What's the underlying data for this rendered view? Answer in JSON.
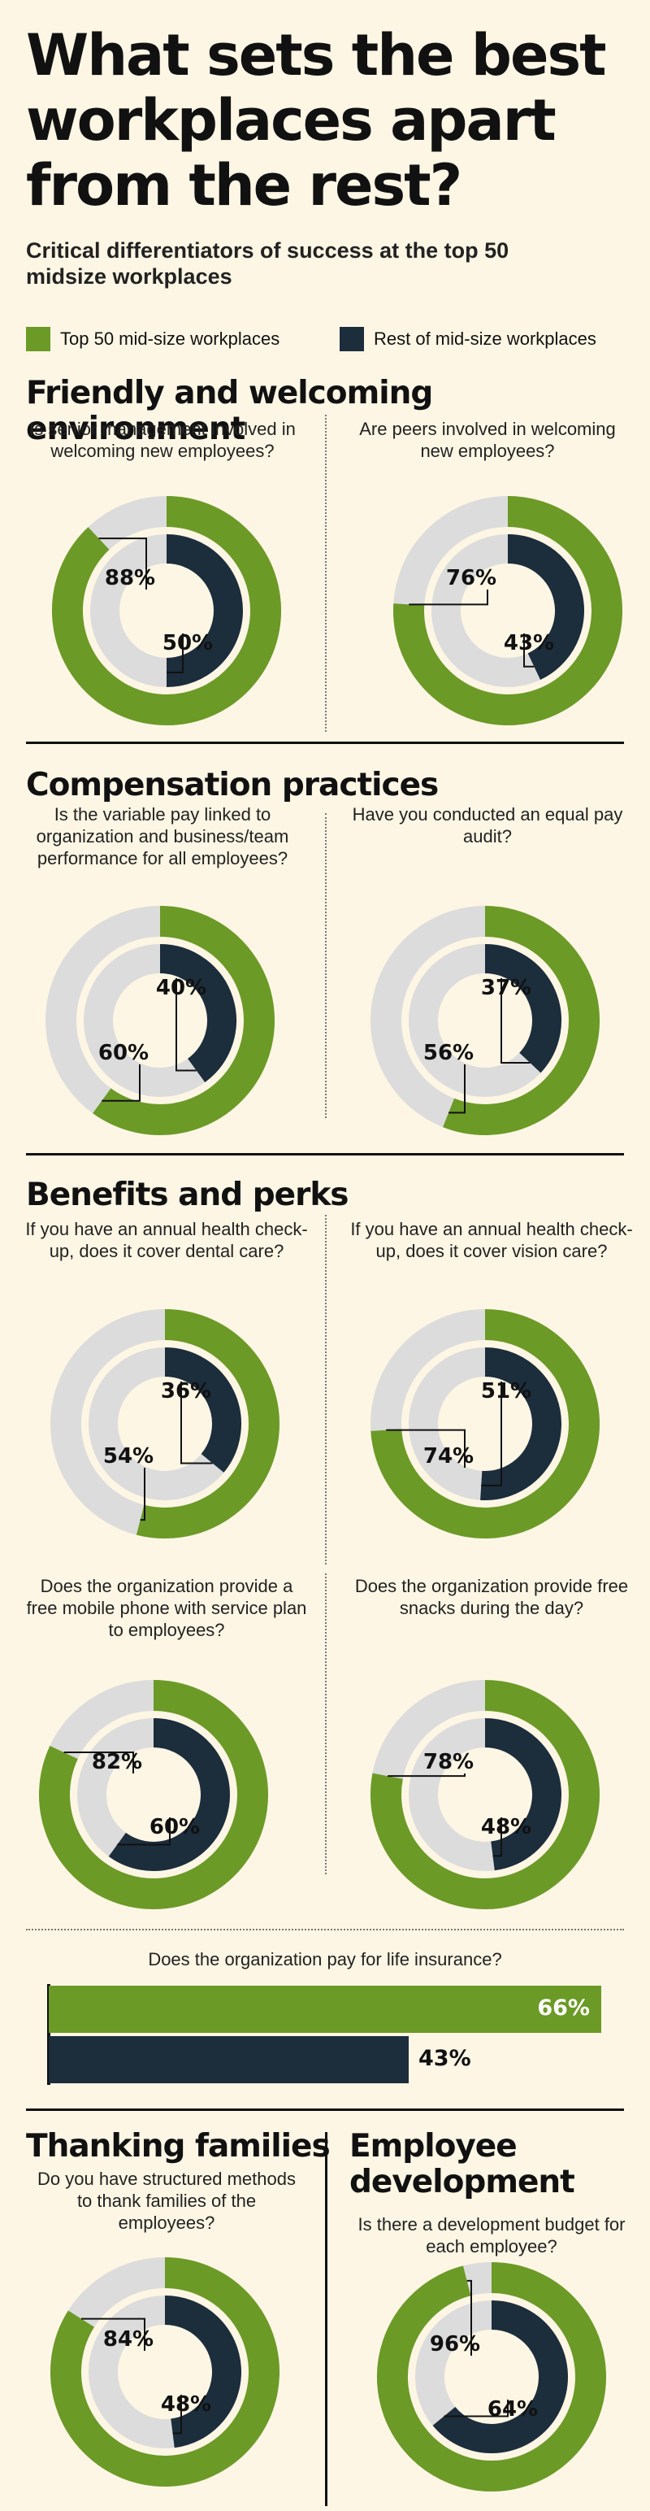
{
  "header": {
    "title": "What sets the best workplaces apart from the rest?",
    "subtitle": "Critical differentiators of success at the top 50 midsize workplaces"
  },
  "legend": {
    "top50": "Top 50 mid-size workplaces",
    "rest": "Rest of mid-size workplaces"
  },
  "colors": {
    "top50": "#6b9a26",
    "rest": "#1c2d3c",
    "track": "#dcdcdc",
    "background": "#fdf6e4"
  },
  "sections": {
    "friendly": "Friendly and welcoming environment",
    "compensation": "Compensation practices",
    "benefits": "Benefits and perks",
    "thanking": "Thanking families",
    "development": "Employee development"
  },
  "chart_data": [
    {
      "type": "donut",
      "id": "senior",
      "question": "Is senior management involved in welcoming new employees?",
      "series": [
        {
          "name": "Top 50 mid-size workplaces",
          "value": 88
        },
        {
          "name": "Rest of mid-size workplaces",
          "value": 50
        }
      ],
      "labels": [
        "88%",
        "50%"
      ]
    },
    {
      "type": "donut",
      "id": "peers",
      "question": "Are peers involved in welcoming new employees?",
      "series": [
        {
          "name": "Top 50 mid-size workplaces",
          "value": 76
        },
        {
          "name": "Rest of mid-size workplaces",
          "value": 43
        }
      ],
      "labels": [
        "76%",
        "43%"
      ]
    },
    {
      "type": "donut",
      "id": "variable",
      "question": "Is the variable pay linked to organization and business/team performance for all employees?",
      "series": [
        {
          "name": "Top 50 mid-size workplaces",
          "value": 60
        },
        {
          "name": "Rest of mid-size workplaces",
          "value": 40
        }
      ],
      "labels": [
        "60%",
        "40%"
      ]
    },
    {
      "type": "donut",
      "id": "equalpay",
      "question": "Have you conducted an equal pay audit?",
      "series": [
        {
          "name": "Top 50 mid-size workplaces",
          "value": 56
        },
        {
          "name": "Rest of mid-size workplaces",
          "value": 37
        }
      ],
      "labels": [
        "56%",
        "37%"
      ]
    },
    {
      "type": "donut",
      "id": "dental",
      "question": "If you have an annual health check-up, does it cover dental care?",
      "series": [
        {
          "name": "Top 50 mid-size workplaces",
          "value": 54
        },
        {
          "name": "Rest of mid-size workplaces",
          "value": 36
        }
      ],
      "labels": [
        "54%",
        "36%"
      ]
    },
    {
      "type": "donut",
      "id": "vision",
      "question": "If you have an annual health check-up, does it cover vision care?",
      "series": [
        {
          "name": "Top 50 mid-size workplaces",
          "value": 74
        },
        {
          "name": "Rest of mid-size workplaces",
          "value": 51
        }
      ],
      "labels": [
        "74%",
        "51%"
      ]
    },
    {
      "type": "donut",
      "id": "mobile",
      "question": "Does the organization provide a free mobile phone with service plan to employees?",
      "series": [
        {
          "name": "Top 50 mid-size workplaces",
          "value": 82
        },
        {
          "name": "Rest of mid-size workplaces",
          "value": 60
        }
      ],
      "labels": [
        "82%",
        "60%"
      ]
    },
    {
      "type": "donut",
      "id": "snacks",
      "question": "Does the organization provide free snacks during the day?",
      "series": [
        {
          "name": "Top 50 mid-size workplaces",
          "value": 78
        },
        {
          "name": "Rest of mid-size workplaces",
          "value": 48
        }
      ],
      "labels": [
        "78%",
        "48%"
      ]
    },
    {
      "type": "bar",
      "id": "life",
      "question": "Does the organization pay for life insurance?",
      "series": [
        {
          "name": "Top 50 mid-size workplaces",
          "value": 66
        },
        {
          "name": "Rest of mid-size workplaces",
          "value": 43
        }
      ],
      "labels": [
        "66%",
        "43%"
      ]
    },
    {
      "type": "donut",
      "id": "families",
      "question": "Do you have structured methods to thank families of the employees?",
      "series": [
        {
          "name": "Top 50 mid-size workplaces",
          "value": 84
        },
        {
          "name": "Rest of mid-size workplaces",
          "value": 48
        }
      ],
      "labels": [
        "84%",
        "48%"
      ]
    },
    {
      "type": "donut",
      "id": "devbudget",
      "question": "Is there a development budget for each employee?",
      "series": [
        {
          "name": "Top 50 mid-size workplaces",
          "value": 96
        },
        {
          "name": "Rest of mid-size workplaces",
          "value": 64
        }
      ],
      "labels": [
        "96%",
        "64%"
      ]
    }
  ]
}
